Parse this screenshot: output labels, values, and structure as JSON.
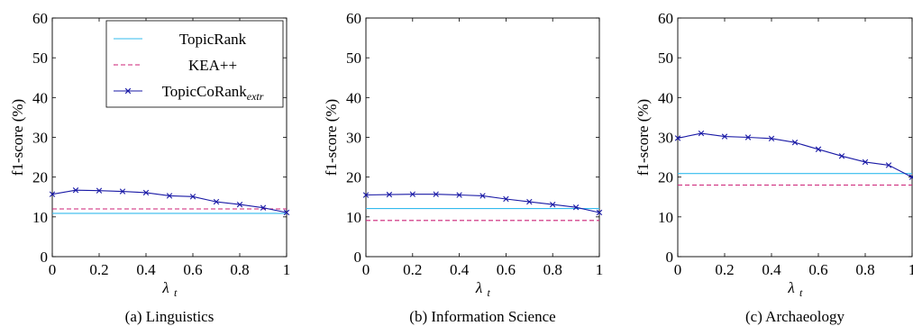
{
  "colors": {
    "topicrank": "#33bbee",
    "kea": "#cc2277",
    "topiccorank": "#1a1aa6"
  },
  "legend": {
    "placement": "top-right",
    "items": [
      {
        "label": "TopicRank",
        "style": "solid",
        "color_key": "topicrank"
      },
      {
        "label": "KEA++",
        "style": "dashed",
        "color_key": "kea"
      },
      {
        "label": "TopicCoRank",
        "sub": "extr",
        "style": "line-cross",
        "color_key": "topiccorank"
      }
    ]
  },
  "chart_data": [
    {
      "type": "line",
      "caption": "(a)  Linguistics",
      "xlabel": "λ",
      "xlabel_sub": "t",
      "ylabel": "f1-score (%)",
      "xlim": [
        0,
        1
      ],
      "ylim": [
        0,
        60
      ],
      "xticks": [
        "0",
        "0.2",
        "0.4",
        "0.6",
        "0.8",
        "1"
      ],
      "yticks": [
        "0",
        "10",
        "20",
        "30",
        "40",
        "50",
        "60"
      ],
      "grid": false,
      "show_legend": true,
      "series": [
        {
          "name": "TopicRank",
          "x": [
            0,
            1
          ],
          "values": [
            10.9,
            10.9
          ]
        },
        {
          "name": "KEA++",
          "x": [
            0,
            1
          ],
          "values": [
            12.0,
            12.0
          ]
        },
        {
          "name": "TopicCoRank_extr",
          "x": [
            0,
            0.1,
            0.2,
            0.3,
            0.4,
            0.5,
            0.6,
            0.7,
            0.8,
            0.9,
            1.0
          ],
          "values": [
            15.7,
            16.7,
            16.6,
            16.4,
            16.1,
            15.3,
            15.1,
            13.8,
            13.1,
            12.3,
            11.1
          ]
        }
      ]
    },
    {
      "type": "line",
      "caption": "(b)  Information Science",
      "xlabel": "λ",
      "xlabel_sub": "t",
      "ylabel": "f1-score (%)",
      "xlim": [
        0,
        1
      ],
      "ylim": [
        0,
        60
      ],
      "xticks": [
        "0",
        "0.2",
        "0.4",
        "0.6",
        "0.8",
        "1"
      ],
      "yticks": [
        "0",
        "10",
        "20",
        "30",
        "40",
        "50",
        "60"
      ],
      "grid": false,
      "show_legend": false,
      "series": [
        {
          "name": "TopicRank",
          "x": [
            0,
            1
          ],
          "values": [
            12.1,
            12.1
          ]
        },
        {
          "name": "KEA++",
          "x": [
            0,
            1
          ],
          "values": [
            9.1,
            9.1
          ]
        },
        {
          "name": "TopicCoRank_extr",
          "x": [
            0,
            0.1,
            0.2,
            0.3,
            0.4,
            0.5,
            0.6,
            0.7,
            0.8,
            0.9,
            1.0
          ],
          "values": [
            15.5,
            15.6,
            15.7,
            15.7,
            15.5,
            15.3,
            14.5,
            13.8,
            13.1,
            12.4,
            11.1
          ]
        }
      ]
    },
    {
      "type": "line",
      "caption": "(c)  Archaeology",
      "xlabel": "λ",
      "xlabel_sub": "t",
      "ylabel": "f1-score (%)",
      "xlim": [
        0,
        1
      ],
      "ylim": [
        0,
        60
      ],
      "xticks": [
        "0",
        "0.2",
        "0.4",
        "0.6",
        "0.8",
        "1"
      ],
      "yticks": [
        "0",
        "10",
        "20",
        "30",
        "40",
        "50",
        "60"
      ],
      "grid": false,
      "show_legend": false,
      "series": [
        {
          "name": "TopicRank",
          "x": [
            0,
            1
          ],
          "values": [
            20.9,
            20.9
          ]
        },
        {
          "name": "KEA++",
          "x": [
            0,
            1
          ],
          "values": [
            18.0,
            18.0
          ]
        },
        {
          "name": "TopicCoRank_extr",
          "x": [
            0,
            0.1,
            0.2,
            0.3,
            0.4,
            0.5,
            0.6,
            0.7,
            0.8,
            0.9,
            1.0
          ],
          "values": [
            29.8,
            31.0,
            30.2,
            30.0,
            29.7,
            28.7,
            27.0,
            25.3,
            23.8,
            23.0,
            20.0
          ]
        }
      ]
    }
  ]
}
